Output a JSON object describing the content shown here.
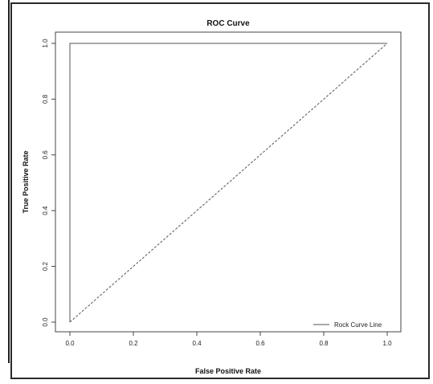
{
  "chart_data": {
    "type": "line",
    "title": "ROC Curve",
    "xlabel": "False Positive Rate",
    "ylabel": "True Positive Rate",
    "xlim": [
      0.0,
      1.0
    ],
    "ylim": [
      0.0,
      1.0
    ],
    "x_ticks": [
      "0.0",
      "0.2",
      "0.4",
      "0.6",
      "0.8",
      "1.0"
    ],
    "y_ticks": [
      "0.0",
      "0.2",
      "0.4",
      "0.6",
      "0.8",
      "1.0"
    ],
    "grid": false,
    "legend_position": "bottom-right",
    "series": [
      {
        "name": "Rock Curve Line",
        "line_style": "solid",
        "color": "#555555",
        "x": [
          0.0,
          0.0,
          1.0
        ],
        "y": [
          0.0,
          1.0,
          1.0
        ]
      },
      {
        "line_style": "dashed",
        "color": "#555555",
        "x": [
          0.0,
          1.0
        ],
        "y": [
          0.0,
          1.0
        ]
      }
    ]
  }
}
